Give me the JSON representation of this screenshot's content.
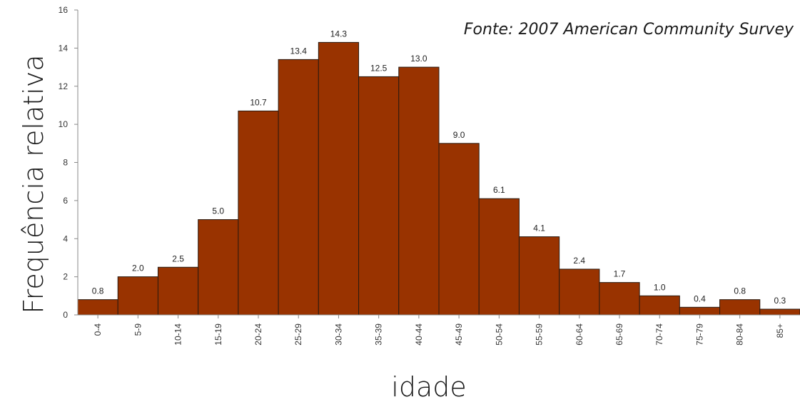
{
  "chart_data": {
    "type": "bar",
    "source_note": "Fonte: 2007 American Community Survey",
    "xlabel": "idade",
    "ylabel": "Frequência relativa",
    "ylim": [
      0,
      16
    ],
    "yticks": [
      0,
      2,
      4,
      6,
      8,
      10,
      12,
      14,
      16
    ],
    "categories": [
      "0-4",
      "5-9",
      "10-14",
      "15-19",
      "20-24",
      "25-29",
      "30-34",
      "35-39",
      "40-44",
      "45-49",
      "50-54",
      "55-59",
      "60-64",
      "65-69",
      "70-74",
      "75-79",
      "80-84",
      "85+"
    ],
    "values": [
      0.8,
      2.0,
      2.5,
      5.0,
      10.7,
      13.4,
      14.3,
      12.5,
      13.0,
      9.0,
      6.1,
      4.1,
      2.4,
      1.7,
      1.0,
      0.4,
      0.8,
      0.3
    ],
    "value_labels": [
      "0.8",
      "2.0",
      "2.5",
      "5.0",
      "10.7",
      "13.4",
      "14.3",
      "12.5",
      "13.0",
      "9.0",
      "6.1",
      "4.1",
      "2.4",
      "1.7",
      "1.0",
      "0.4",
      "0.8",
      "0.3"
    ],
    "grid": false,
    "bar_color": "#993300",
    "bar_edge_color": "#2a1a10"
  }
}
